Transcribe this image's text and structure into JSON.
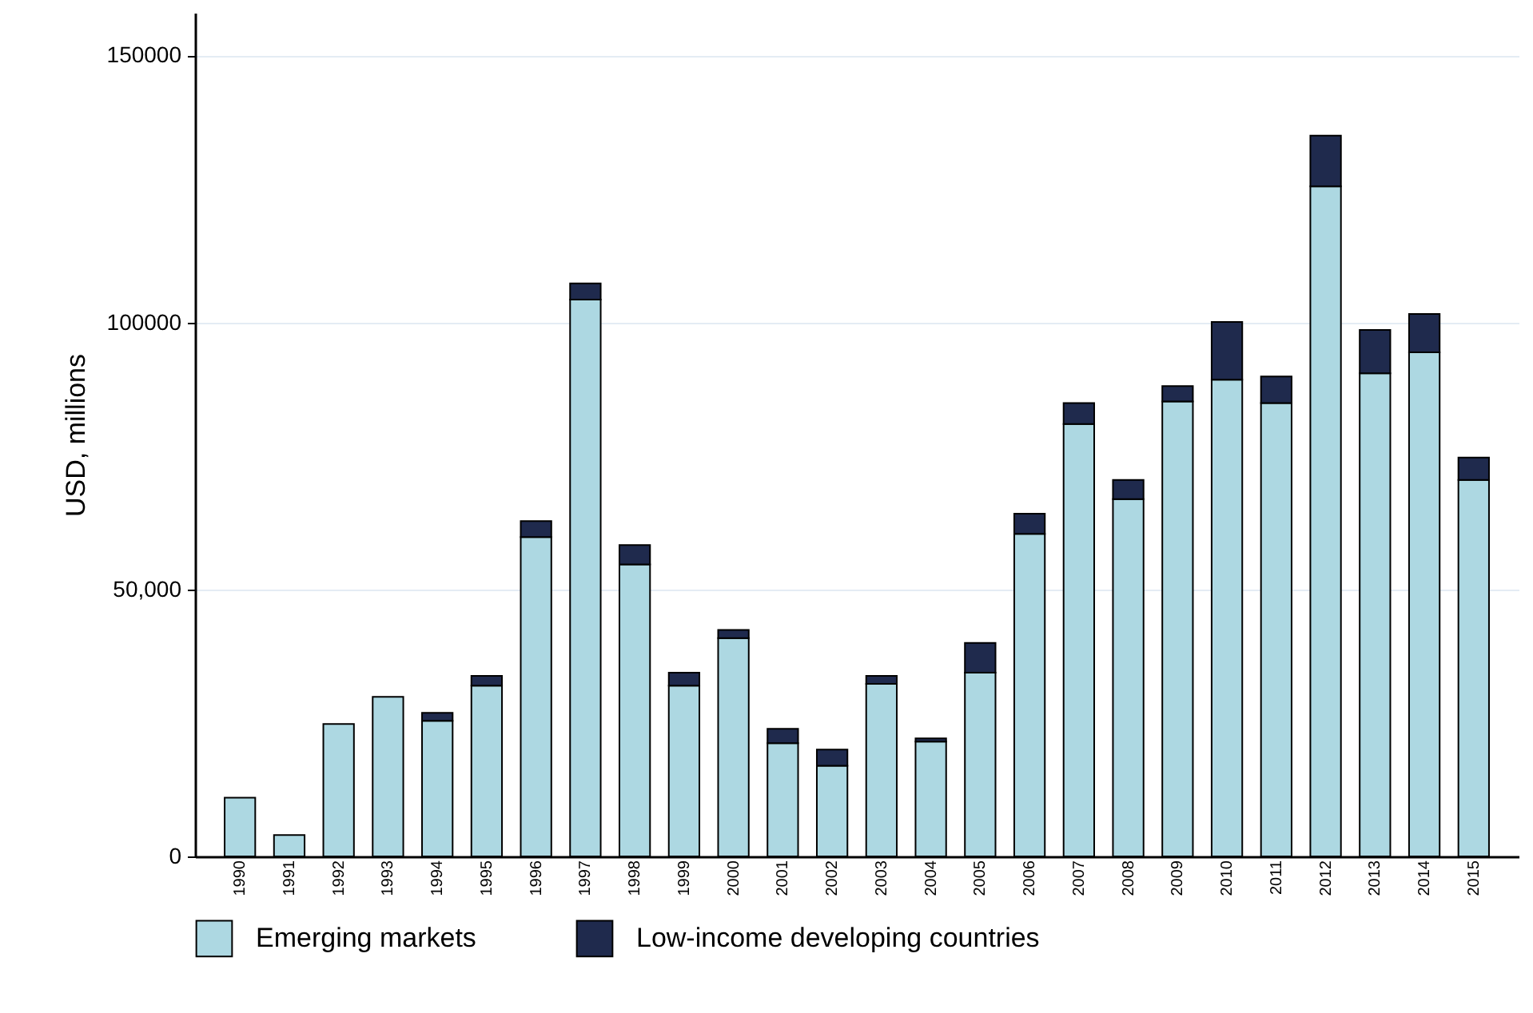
{
  "chart_data": {
    "type": "bar",
    "stacked": true,
    "ylabel": "USD, millions",
    "categories": [
      "1990",
      "1991",
      "1992",
      "1993",
      "1994",
      "1995",
      "1996",
      "1997",
      "1998",
      "1999",
      "2000",
      "2001",
      "2002",
      "2003",
      "2004",
      "2005",
      "2006",
      "2007",
      "2008",
      "2009",
      "2010",
      "2011",
      "2012",
      "2013",
      "2014",
      "2015"
    ],
    "series": [
      {
        "name": "Emerging markets",
        "color": "#add8e2",
        "values": [
          11000,
          4000,
          24800,
          29900,
          25400,
          32000,
          59800,
          104300,
          54700,
          32000,
          40900,
          21200,
          17000,
          32300,
          21500,
          34400,
          60400,
          81000,
          66900,
          85200,
          89300,
          84900,
          125500,
          90500,
          94400,
          70500
        ]
      },
      {
        "name": "Low-income developing countries",
        "color": "#1f2a4d",
        "values": [
          null,
          null,
          null,
          null,
          1500,
          1800,
          3000,
          3000,
          3600,
          2400,
          1500,
          2700,
          3000,
          1500,
          600,
          5600,
          3800,
          3900,
          3600,
          2900,
          10800,
          5000,
          9500,
          8100,
          7200,
          4200
        ]
      }
    ],
    "ylim": [
      0,
      158000
    ],
    "yticks": [
      0,
      {
        "value": 50000,
        "label": "50,000"
      },
      100000,
      150000
    ],
    "grid": "y",
    "legend": "bottom"
  }
}
